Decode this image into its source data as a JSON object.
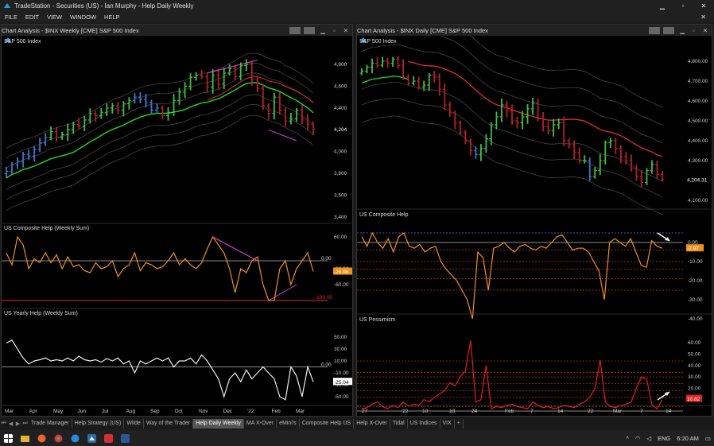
{
  "window": {
    "title": "TradeStation  -  Securities (US)  -  Ian Murphy  -  Help Daily Weekly",
    "min": "▁",
    "max": "▫",
    "close": "✕"
  },
  "menu": [
    "FILE",
    "EDIT",
    "VIEW",
    "WINDOW",
    "HELP"
  ],
  "menu_close": "✕",
  "left": {
    "header": "Chart Analysis - $INX Weekly [CME] S&P 500 Index",
    "symbol_label": "S&P 500 Index",
    "price_labels": [
      "4,800",
      "4,600",
      "4,400",
      "4,200",
      "4,000",
      "3,800",
      "3,600",
      "3,400"
    ],
    "price_current": "4,204",
    "comp_title": "US Composite Help (Weekly Sum)",
    "comp_labels": [
      "60.00",
      "0.00",
      "-20.00",
      "-60.00",
      "-100.00"
    ],
    "comp_current": "-26.96",
    "yearly_title": "US Yearly Help (Weekly Sum)",
    "yearly_labels": [
      "50.00",
      "30.00",
      "10.00",
      "0.00",
      "-10.00",
      "-30.00",
      "-50.00"
    ],
    "yearly_current": "-25.04",
    "x_labels": [
      "Mar",
      "Apr",
      "May",
      "Jun",
      "Jul",
      "Aug",
      "Sep",
      "Oct",
      "Nov",
      "Dec",
      "'22",
      "Feb",
      "Mar"
    ]
  },
  "right": {
    "header": "Chart Analysis - $INX Daily [CME] S&P 500 Index",
    "symbol_label": "S&P 500 Index",
    "price_labels": [
      "4,800.00",
      "4,700.00",
      "4,600.00",
      "4,500.00",
      "4,400.00",
      "4,300.00",
      "4,200.00",
      "4,100.00"
    ],
    "price_current": "4,204.31",
    "comp_title": "US Composite Help",
    "comp_labels": [
      "0.00",
      "-10.00",
      "-20.00",
      "-30.00",
      "-40.00"
    ],
    "comp_current": "-2.97",
    "pess_title": "US Pessimism",
    "pess_labels": [
      "60.00",
      "50.00",
      "40.00",
      "30.00",
      "20.00",
      "10.00"
    ],
    "pess_current": "10.82",
    "x_labels": [
      "27",
      "'22",
      "10",
      "18",
      "24",
      "Feb",
      "7",
      "14",
      "22",
      "Mar",
      "7",
      "14"
    ]
  },
  "tabs": [
    "Trade Manager",
    "Help Strategy (US)",
    "Wilde",
    "Way of the Trader",
    "Help Daily Weekly",
    "MA X-Over",
    "eMini's",
    "Composite Help US",
    "Help X-Over",
    "Tidal",
    "US Indices",
    "VIX",
    "+"
  ],
  "active_tab": "Help Daily Weekly",
  "taskbar": {
    "lang": "ENG",
    "time": "6:20 AM"
  },
  "colors": {
    "up": "#3fbf3f",
    "down": "#b3202a",
    "neutral": "#3a78c8",
    "ma": "#22dd22",
    "ma_red": "#e03030",
    "orange": "#f0901a",
    "magenta": "#e040e0"
  }
}
